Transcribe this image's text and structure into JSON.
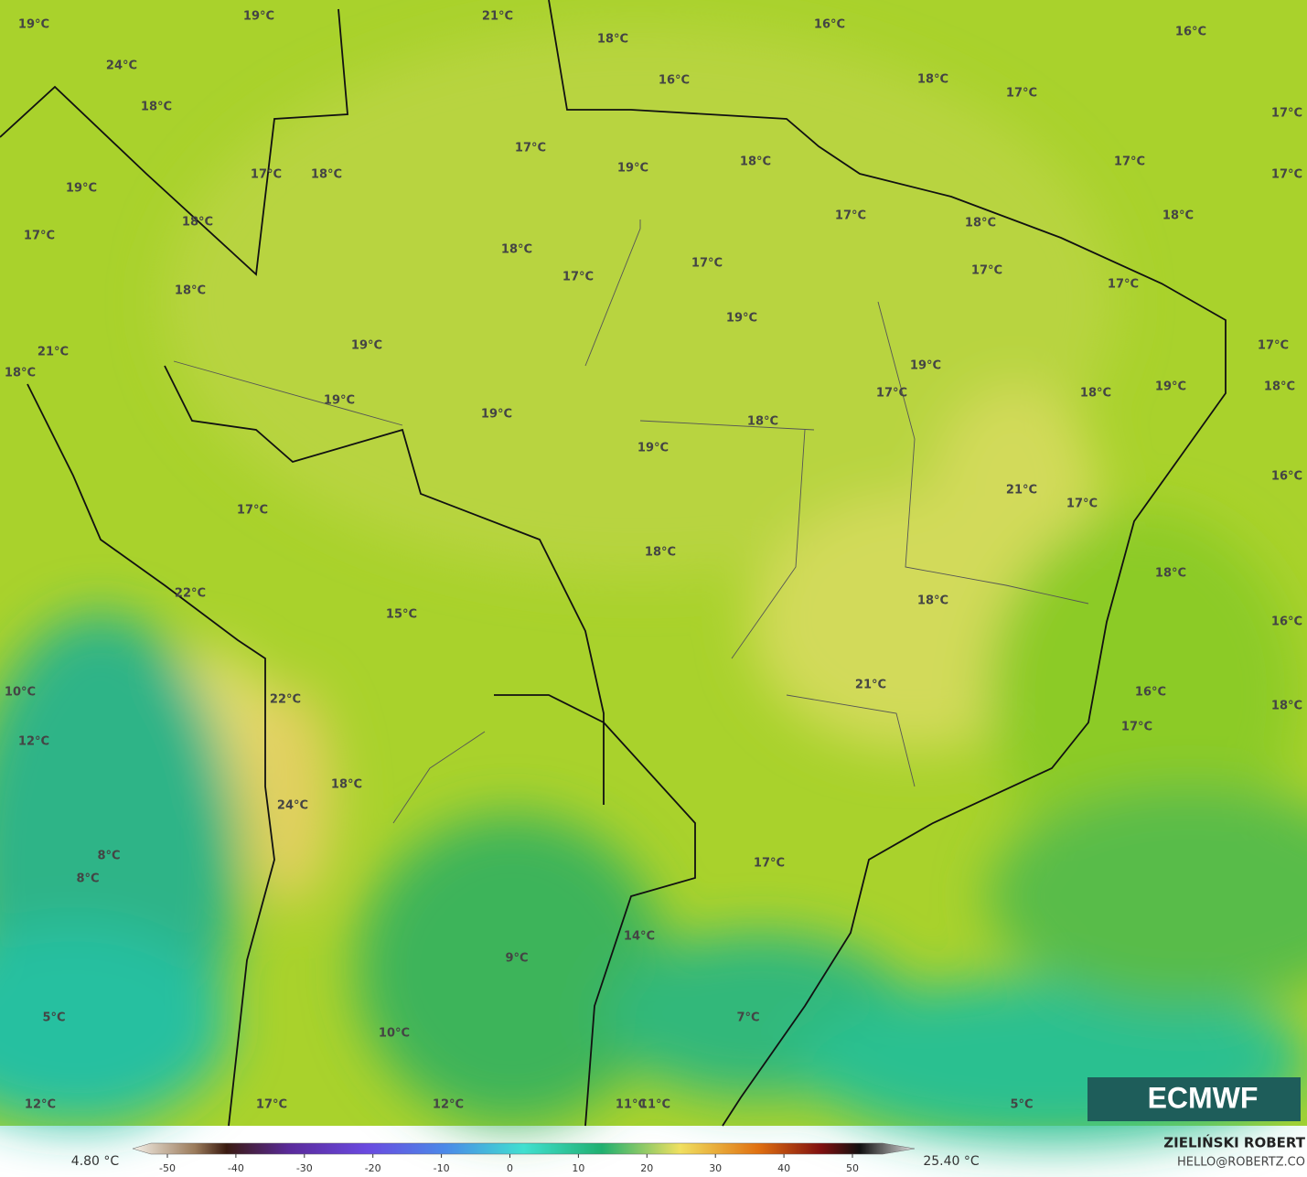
{
  "map": {
    "labels": [
      "19°C",
      "19°C",
      "21°C",
      "18°C",
      "16°C",
      "16°C",
      "24°C",
      "16°C",
      "18°C",
      "17°C",
      "17°C",
      "18°C",
      "17°C",
      "19°C",
      "18°C",
      "17°C",
      "17°C",
      "17°C",
      "18°C",
      "19°C",
      "17°C",
      "18°C",
      "18°C",
      "18°C",
      "17°C",
      "18°C",
      "17°C",
      "17°C",
      "17°C",
      "17°C",
      "18°C",
      "19°C",
      "19°C",
      "17°C",
      "21°C",
      "18°C",
      "19°C",
      "17°C",
      "18°C",
      "19°C",
      "18°C",
      "19°C",
      "19°C",
      "18°C",
      "19°C",
      "16°C",
      "21°C",
      "17°C",
      "17°C",
      "18°C",
      "18°C",
      "22°C",
      "18°C",
      "15°C",
      "16°C",
      "21°C",
      "10°C",
      "16°C",
      "22°C",
      "18°C",
      "17°C",
      "12°C",
      "18°C",
      "24°C",
      "8°C",
      "17°C",
      "8°C",
      "14°C",
      "9°C",
      "5°C",
      "7°C",
      "10°C",
      "12°C",
      "17°C",
      "12°C",
      "11°C",
      "11°C",
      "5°C"
    ]
  },
  "logo": "ECMWF",
  "colorbar": {
    "min_label": "4.80 °C",
    "max_label": "25.40 °C",
    "ticks": [
      -50,
      -40,
      -30,
      -20,
      -10,
      0,
      10,
      20,
      30,
      40,
      50
    ]
  },
  "credit": {
    "author": "ZIELIŃSKI ROBERT",
    "email": "HELLO@ROBERTZ.CO"
  }
}
